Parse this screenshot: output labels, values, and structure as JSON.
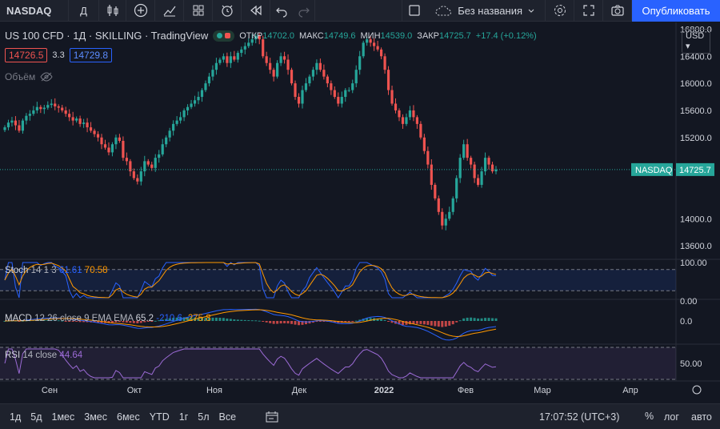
{
  "toolbar": {
    "symbol": "NASDAQ",
    "interval": "Д",
    "layout_name": "Без названия",
    "publish_label": "Опубликовать"
  },
  "legend": {
    "title": "US 100 CFD · 1Д · SKILLING · TradingView",
    "open_label": "ОТКР",
    "open": "14702.0",
    "high_label": "МАКС",
    "high": "14749.6",
    "low_label": "МИН",
    "low": "14539.0",
    "close_label": "ЗАКР",
    "close": "14725.7",
    "change": "+17.4 (+0.12%)",
    "sell_price": "14726.5",
    "spread": "3.3",
    "buy_price": "14729.8",
    "volume_label": "Объём"
  },
  "currency": "USD",
  "price_axis": [
    "16800.0",
    "16400.0",
    "16000.0",
    "15600.0",
    "15200.0",
    "14000.0",
    "13600.0"
  ],
  "price_tag": {
    "name": "NASDAQ",
    "value": "14725.7"
  },
  "stoch": {
    "name": "Stoch",
    "params": "14 1 3",
    "k": "61.61",
    "d": "70.58",
    "axis": [
      "100.00",
      "0.00"
    ]
  },
  "macd": {
    "name": "MACD",
    "params": "12 26 close 9 EMA EMA",
    "hist": "65.2",
    "macd": "-210.6",
    "signal": "-275.8",
    "axis": [
      "0.0"
    ]
  },
  "rsi": {
    "name": "RSI",
    "params": "14 close",
    "value": "44.64",
    "axis": [
      "50.00"
    ]
  },
  "time_axis": [
    "Сен",
    "Окт",
    "Ноя",
    "Дек",
    "2022",
    "Фев",
    "Мар",
    "Апр"
  ],
  "timeframes": [
    "1д",
    "5д",
    "1мес",
    "3мес",
    "6мес",
    "YTD",
    "1г",
    "5л",
    "Все"
  ],
  "clock": "17:07:52 (UTC+3)",
  "scale_pct": "%",
  "scale_log": "лог",
  "scale_auto": "авто",
  "chart_data": {
    "type": "candlestick",
    "title": "US 100 CFD · 1Д · SKILLING · TradingView",
    "x": [
      "Сен",
      "Окт",
      "Ноя",
      "Дек",
      "2022",
      "Фев",
      "Мар",
      "Апр"
    ],
    "ylim": [
      13400,
      16900
    ],
    "current_price": 14725.7,
    "closes_approx": [
      15350,
      15420,
      15450,
      15380,
      15300,
      15450,
      15520,
      15550,
      15600,
      15650,
      15620,
      15640,
      15680,
      15700,
      15660,
      15640,
      15600,
      15550,
      15500,
      15450,
      15480,
      15400,
      15420,
      15350,
      15300,
      15250,
      15200,
      15100,
      15050,
      14980,
      15100,
      15200,
      15150,
      14900,
      14850,
      14700,
      14600,
      14550,
      14700,
      14850,
      14800,
      14750,
      14900,
      14950,
      15100,
      15200,
      15300,
      15400,
      15450,
      15500,
      15600,
      15650,
      15700,
      15750,
      15800,
      15900,
      16000,
      16100,
      16200,
      16300,
      16350,
      16400,
      16300,
      16400,
      16350,
      16450,
      16500,
      16550,
      16600,
      16650,
      16700,
      16650,
      16400,
      16300,
      16200,
      16100,
      16300,
      16400,
      16350,
      16200,
      16000,
      15800,
      15700,
      15900,
      16000,
      16100,
      16200,
      16300,
      16200,
      16100,
      16000,
      15900,
      15800,
      15700,
      15800,
      15900,
      15900,
      16000,
      16200,
      16400,
      16600,
      16650,
      16600,
      16550,
      16500,
      16400,
      16200,
      15900,
      15700,
      15600,
      15500,
      15400,
      15500,
      15600,
      15500,
      15400,
      15200,
      15000,
      14800,
      14500,
      14300,
      14100,
      13900,
      14000,
      14100,
      14300,
      14600,
      14900,
      15100,
      14900,
      14800,
      14600,
      14500,
      14700,
      14900,
      14800,
      14700,
      14725
    ],
    "stoch_k_last": 61.61,
    "stoch_d_last": 70.58,
    "macd_hist_last": 65.2,
    "macd_last": -210.6,
    "signal_last": -275.8,
    "rsi_last": 44.64
  }
}
